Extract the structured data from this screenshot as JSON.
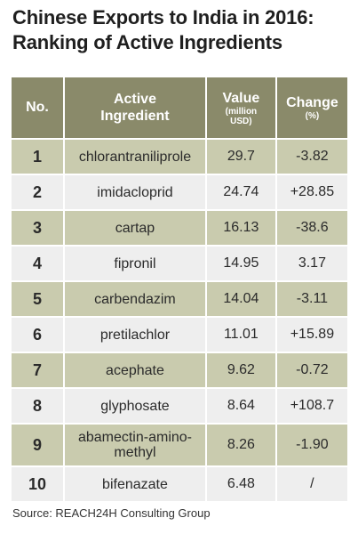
{
  "title_line1": "Chinese Exports to India in 2016:",
  "title_line2": "Ranking of Active Ingredients",
  "headers": {
    "no": "No.",
    "ingredient_line1": "Active",
    "ingredient_line2": "Ingredient",
    "value": "Value",
    "value_unit_line1": "(million",
    "value_unit_line2": "USD)",
    "change": "Change",
    "change_unit": "(%)"
  },
  "source": "Source: REACH24H Consulting Group",
  "chart_data": {
    "type": "table",
    "columns": [
      "No.",
      "Active Ingredient",
      "Value (million USD)",
      "Change (%)"
    ],
    "rows": [
      {
        "no": "1",
        "ingredient": "chlorantraniliprole",
        "value": "29.7",
        "change": "-3.82"
      },
      {
        "no": "2",
        "ingredient": "imidacloprid",
        "value": "24.74",
        "change": "+28.85"
      },
      {
        "no": "3",
        "ingredient": "cartap",
        "value": "16.13",
        "change": "-38.6"
      },
      {
        "no": "4",
        "ingredient": "fipronil",
        "value": "14.95",
        "change": "3.17"
      },
      {
        "no": "5",
        "ingredient": "carbendazim",
        "value": "14.04",
        "change": "-3.11"
      },
      {
        "no": "6",
        "ingredient": "pretilachlor",
        "value": "11.01",
        "change": "+15.89"
      },
      {
        "no": "7",
        "ingredient": "acephate",
        "value": "9.62",
        "change": "-0.72"
      },
      {
        "no": "8",
        "ingredient": "glyphosate",
        "value": "8.64",
        "change": "+108.7"
      },
      {
        "no": "9",
        "ingredient": "abamectin-amino-methyl",
        "value": "8.26",
        "change": "-1.90"
      },
      {
        "no": "10",
        "ingredient": "bifenazate",
        "value": "6.48",
        "change": "/"
      }
    ]
  },
  "colors": {
    "header_bg": "#8a8a6a",
    "odd_row_bg": "#c9cbae",
    "even_row_bg": "#eeeeee"
  }
}
